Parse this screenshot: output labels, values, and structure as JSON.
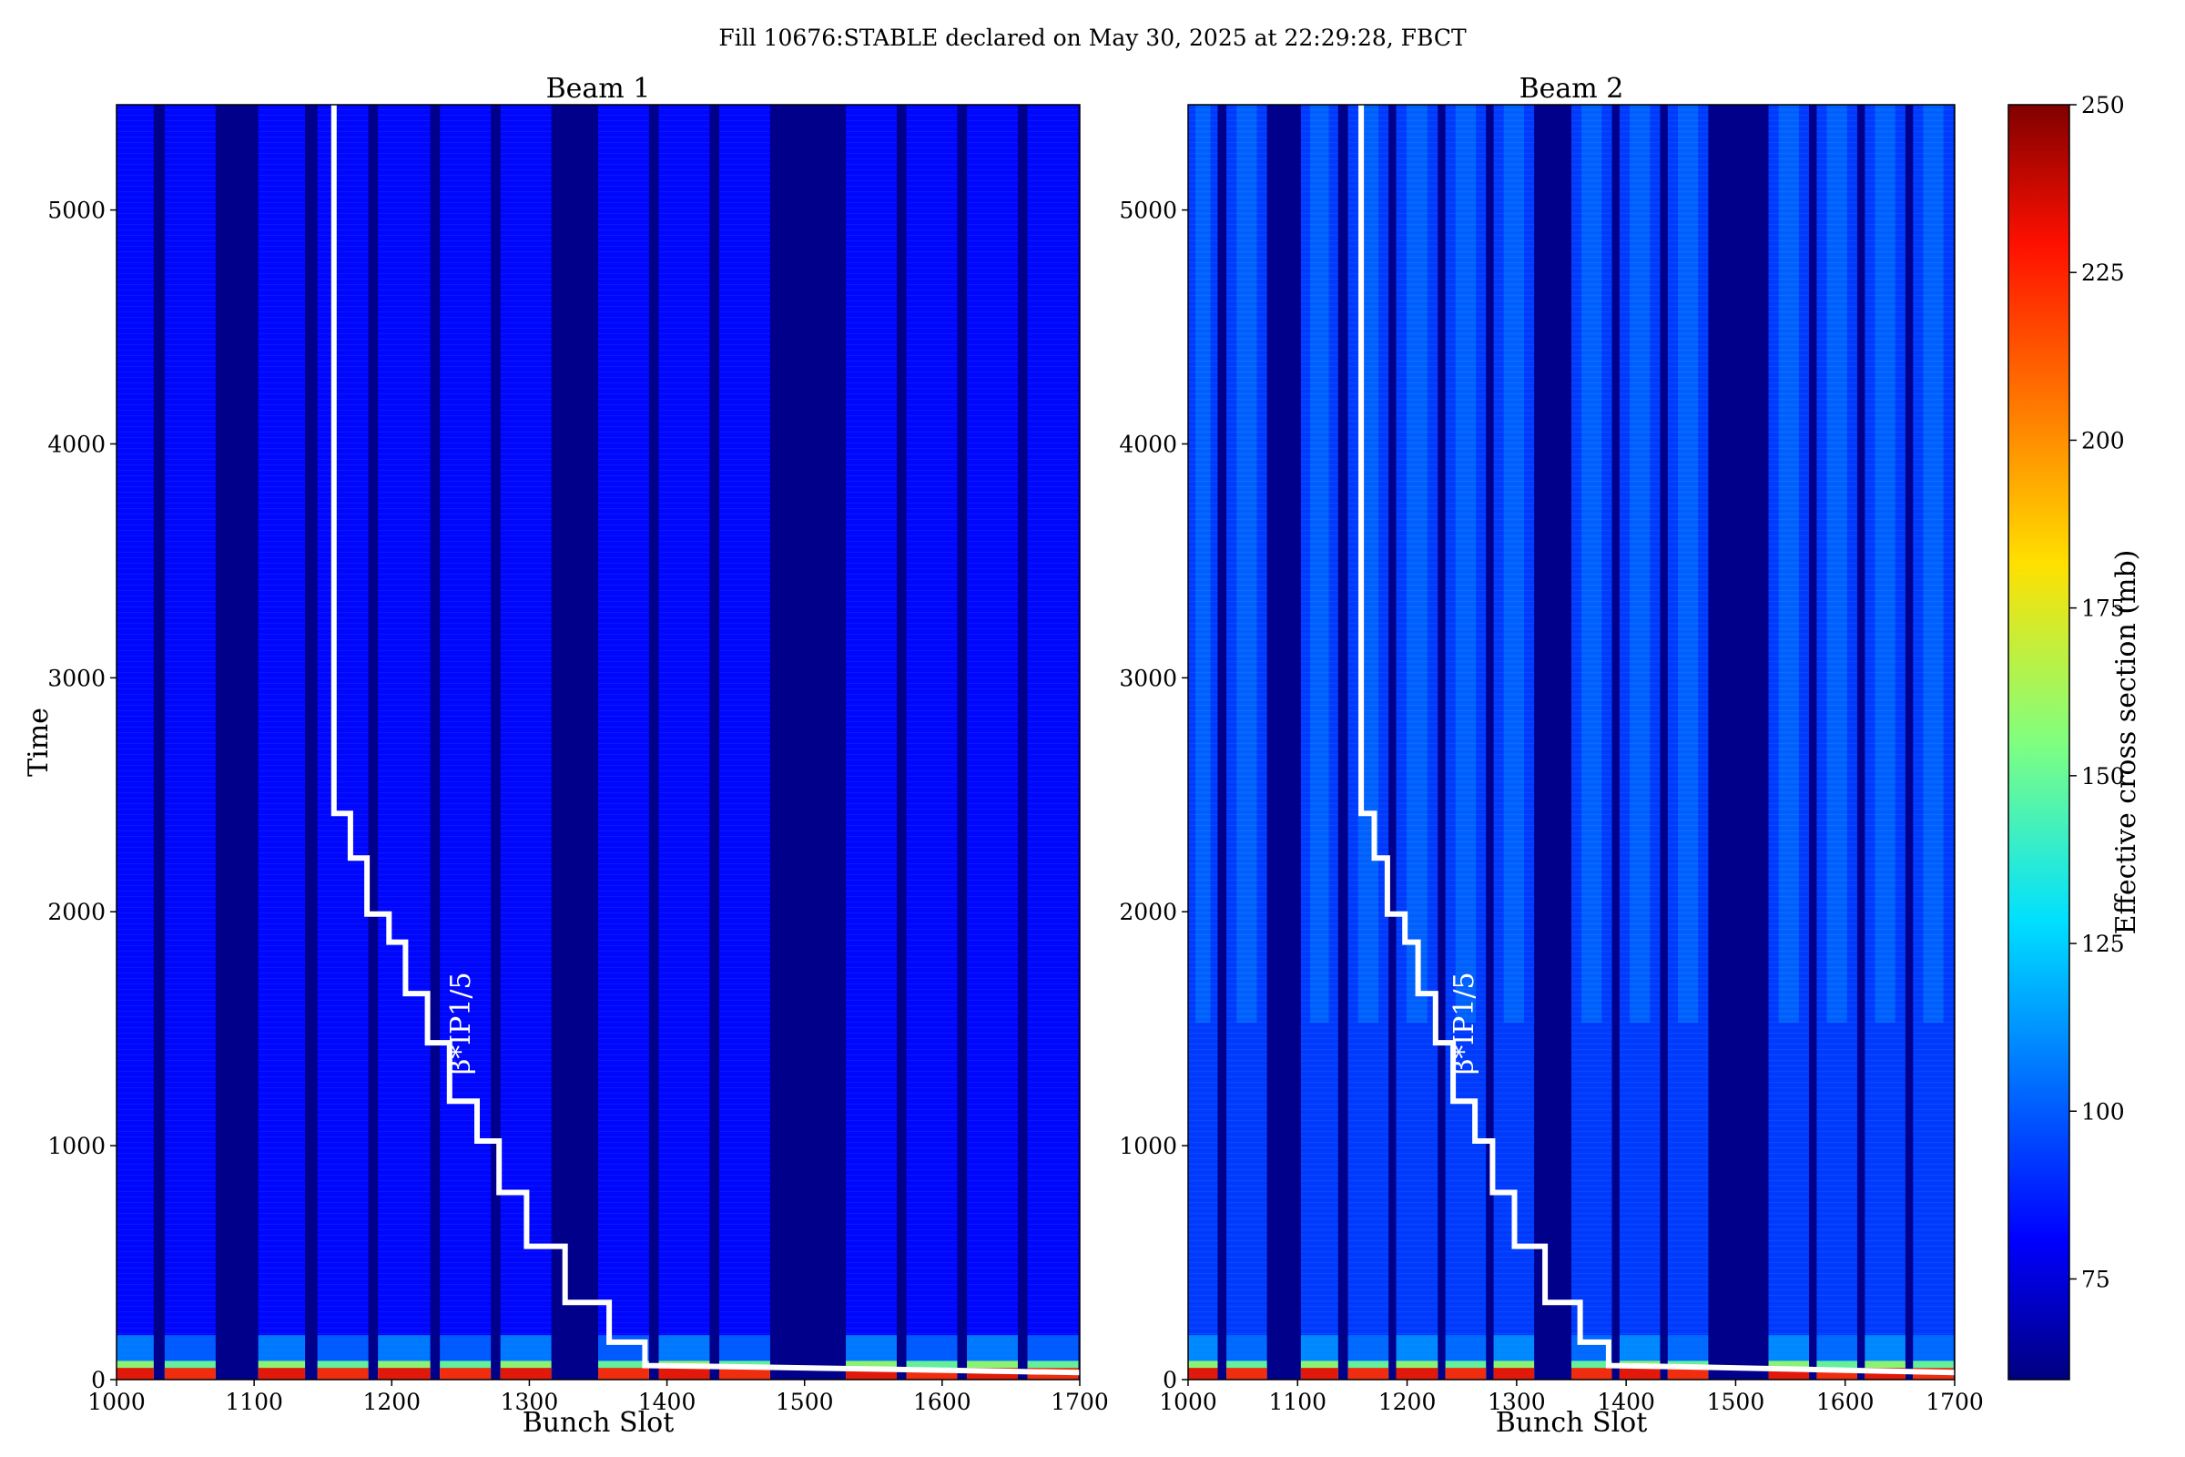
{
  "figure": {
    "suptitle": "Fill 10676:STABLE declared on May 30, 2025 at 22:29:28, FBCT"
  },
  "colorbar": {
    "label": "Effective cross section (mb)",
    "ticks": [
      75,
      100,
      125,
      150,
      175,
      200,
      225,
      250
    ],
    "range": [
      60,
      250
    ],
    "colormap": "jet"
  },
  "chart_data": [
    {
      "type": "heatmap",
      "title": "Beam 1",
      "xlabel": "Bunch Slot",
      "ylabel": "Time",
      "xlim": [
        1000,
        1700
      ],
      "ylim": [
        0,
        5450
      ],
      "xticks": [
        1000,
        1100,
        1200,
        1300,
        1400,
        1500,
        1600,
        1700
      ],
      "yticks": [
        0,
        1000,
        2000,
        3000,
        4000,
        5000
      ],
      "background_value": 85,
      "filled_trains": [
        [
          1000,
          1027
        ],
        [
          1035,
          1072
        ],
        [
          1103,
          1137
        ],
        [
          1146,
          1183
        ],
        [
          1190,
          1228
        ],
        [
          1235,
          1272
        ],
        [
          1279,
          1316
        ],
        [
          1350,
          1387
        ],
        [
          1394,
          1431
        ],
        [
          1438,
          1475
        ],
        [
          1530,
          1567
        ],
        [
          1574,
          1611
        ],
        [
          1618,
          1655
        ],
        [
          1662,
          1699
        ]
      ],
      "beta_star_label": "β*IP1/5",
      "beta_star_step_curve": [
        [
          1158,
          5450
        ],
        [
          1158,
          2420
        ],
        [
          1170,
          2420
        ],
        [
          1170,
          2230
        ],
        [
          1182,
          2230
        ],
        [
          1182,
          1990
        ],
        [
          1198,
          1990
        ],
        [
          1198,
          1870
        ],
        [
          1210,
          1870
        ],
        [
          1210,
          1650
        ],
        [
          1226,
          1650
        ],
        [
          1226,
          1440
        ],
        [
          1242,
          1440
        ],
        [
          1242,
          1190
        ],
        [
          1262,
          1190
        ],
        [
          1262,
          1020
        ],
        [
          1278,
          1020
        ],
        [
          1278,
          800
        ],
        [
          1298,
          800
        ],
        [
          1298,
          570
        ],
        [
          1326,
          570
        ],
        [
          1326,
          330
        ],
        [
          1358,
          330
        ],
        [
          1358,
          160
        ],
        [
          1384,
          160
        ],
        [
          1384,
          60
        ],
        [
          1450,
          55
        ],
        [
          1550,
          45
        ],
        [
          1650,
          35
        ],
        [
          1700,
          30
        ]
      ]
    },
    {
      "type": "heatmap",
      "title": "Beam 2",
      "xlabel": "Bunch Slot",
      "ylabel": "",
      "xlim": [
        1000,
        1700
      ],
      "ylim": [
        0,
        5450
      ],
      "xticks": [
        1000,
        1100,
        1200,
        1300,
        1400,
        1500,
        1600,
        1700
      ],
      "yticks": [
        0,
        1000,
        2000,
        3000,
        4000,
        5000
      ],
      "background_value": 95,
      "filled_trains": [
        [
          1000,
          1027
        ],
        [
          1035,
          1072
        ],
        [
          1103,
          1137
        ],
        [
          1146,
          1183
        ],
        [
          1190,
          1228
        ],
        [
          1235,
          1272
        ],
        [
          1279,
          1316
        ],
        [
          1350,
          1387
        ],
        [
          1394,
          1431
        ],
        [
          1438,
          1475
        ],
        [
          1530,
          1567
        ],
        [
          1574,
          1611
        ],
        [
          1618,
          1655
        ],
        [
          1662,
          1699
        ]
      ],
      "beta_star_label": "β*IP1/5",
      "beta_star_step_curve": [
        [
          1158,
          5450
        ],
        [
          1158,
          2420
        ],
        [
          1170,
          2420
        ],
        [
          1170,
          2230
        ],
        [
          1182,
          2230
        ],
        [
          1182,
          1990
        ],
        [
          1198,
          1990
        ],
        [
          1198,
          1870
        ],
        [
          1210,
          1870
        ],
        [
          1210,
          1650
        ],
        [
          1226,
          1650
        ],
        [
          1226,
          1440
        ],
        [
          1242,
          1440
        ],
        [
          1242,
          1190
        ],
        [
          1262,
          1190
        ],
        [
          1262,
          1020
        ],
        [
          1278,
          1020
        ],
        [
          1278,
          800
        ],
        [
          1298,
          800
        ],
        [
          1298,
          570
        ],
        [
          1326,
          570
        ],
        [
          1326,
          330
        ],
        [
          1358,
          330
        ],
        [
          1358,
          160
        ],
        [
          1384,
          160
        ],
        [
          1384,
          60
        ],
        [
          1450,
          55
        ],
        [
          1550,
          45
        ],
        [
          1650,
          35
        ],
        [
          1700,
          30
        ]
      ]
    }
  ]
}
